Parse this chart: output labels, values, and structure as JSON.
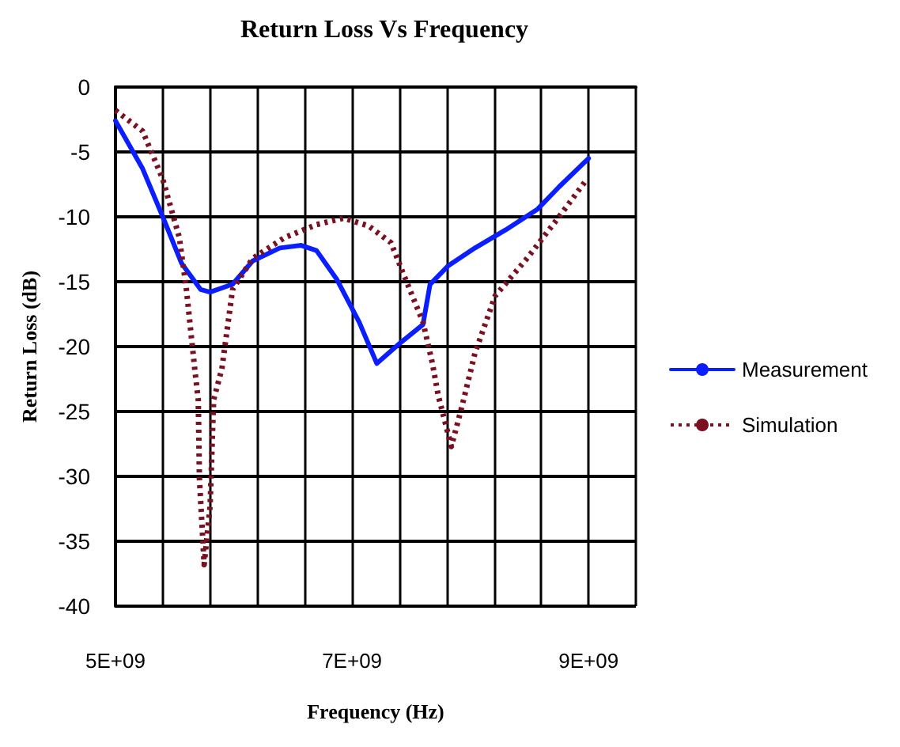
{
  "chart_data": {
    "type": "line",
    "title": "Return Loss Vs Frequency",
    "xlabel": "Frequency (Hz)",
    "ylabel": "Return Loss (dB)",
    "xlim": [
      5000000000,
      9400000000
    ],
    "xticks": [
      {
        "value": 5000000000,
        "label": "5E+09"
      },
      {
        "value": 5400000000,
        "label": null
      },
      {
        "value": 5800000000,
        "label": null
      },
      {
        "value": 6200000000,
        "label": null
      },
      {
        "value": 6600000000,
        "label": null
      },
      {
        "value": 7000000000,
        "label": "7E+09"
      },
      {
        "value": 7400000000,
        "label": null
      },
      {
        "value": 7800000000,
        "label": null
      },
      {
        "value": 8200000000,
        "label": null
      },
      {
        "value": 8600000000,
        "label": null
      },
      {
        "value": 9000000000,
        "label": "9E+09"
      },
      {
        "value": 9400000000,
        "label": null
      }
    ],
    "ylim": [
      -40,
      0
    ],
    "yticks": [
      -40,
      -35,
      -30,
      -25,
      -20,
      -15,
      -10,
      -5,
      0
    ],
    "grid": true,
    "legend": "right",
    "marker": "none",
    "series": [
      {
        "name": "Measurement",
        "color": "#0a1eff",
        "line_style": "solid",
        "x": [
          5000000000,
          5230000000,
          5400000000,
          5560000000,
          5720000000,
          5800000000,
          5990000000,
          6160000000,
          6390000000,
          6570000000,
          6700000000,
          6870000000,
          7060000000,
          7210000000,
          7410000000,
          7600000000,
          7660000000,
          7810000000,
          8040000000,
          8300000000,
          8570000000,
          8750000000,
          9000000000
        ],
        "values": [
          -2.6,
          -6.3,
          -10,
          -13.6,
          -15.6,
          -15.8,
          -15.2,
          -13.4,
          -12.4,
          -12.2,
          -12.6,
          -14.8,
          -18.1,
          -21.3,
          -19.7,
          -18.3,
          -15.2,
          -13.8,
          -12.4,
          -11,
          -9.4,
          -7.7,
          -5.5
        ]
      },
      {
        "name": "Simulation",
        "color": "#7a1020",
        "line_style": "dotted",
        "x": [
          5000000000,
          5230000000,
          5400000000,
          5540000000,
          5600000000,
          5670000000,
          5700000000,
          5710000000,
          5750000000,
          5800000000,
          5830000000,
          5900000000,
          5990000000,
          6160000000,
          6430000000,
          6700000000,
          6930000000,
          7140000000,
          7330000000,
          7430000000,
          7600000000,
          7680000000,
          7730000000,
          7840000000,
          7930000000,
          8040000000,
          8210000000,
          8480000000,
          8750000000,
          8970000000
        ],
        "values": [
          -1.8,
          -3.4,
          -7.1,
          -11.6,
          -15.6,
          -21.7,
          -24.1,
          -30.2,
          -36.8,
          -32.3,
          -24.1,
          -21.7,
          -15.6,
          -13.2,
          -11.6,
          -10.6,
          -10.1,
          -10.7,
          -12,
          -14.3,
          -18.1,
          -21.3,
          -23.8,
          -27.7,
          -24.6,
          -20.5,
          -16.1,
          -13.2,
          -10,
          -7.3
        ]
      }
    ]
  }
}
